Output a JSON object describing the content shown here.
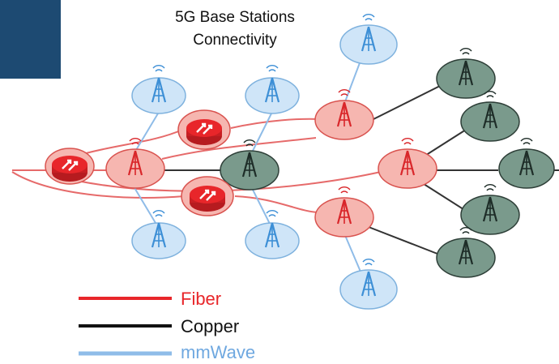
{
  "title": {
    "line1": "5G Base Stations",
    "line2": "Connectivity"
  },
  "legend": [
    {
      "label": "Fiber",
      "color": "#e8262a"
    },
    {
      "label": "Copper",
      "color": "#111111"
    },
    {
      "label": "mmWave",
      "color": "#8fbce8"
    }
  ],
  "colors": {
    "fiber": "#e66a6a",
    "copper": "#333333",
    "mmwave": "#8fbce8",
    "fiber_node_fill": "#f6b6b0",
    "fiber_node_stroke": "#d9534f",
    "copper_node_fill": "#7a9a8c",
    "copper_node_stroke": "#2e3f38",
    "mmwave_node_fill": "#cfe5f8",
    "mmwave_node_stroke": "#7fb2de",
    "router_fill": "#e8262a",
    "corner_block": "#1d4a72"
  },
  "icons": [
    "router-icon",
    "cell-tower-icon"
  ]
}
